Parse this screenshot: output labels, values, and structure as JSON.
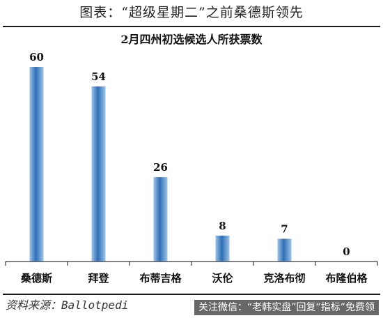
{
  "header": {
    "title": "图表：“超级星期二”之前桑德斯领先"
  },
  "source": {
    "text": "资料来源：Ballotpedi"
  },
  "watermark": {
    "text": "关注微信：“老韩实盘”回复“指标”免费领"
  },
  "colors": {
    "bar_light": "#9cc3ea",
    "bar_dark": "#2f6fb5",
    "axis": "#3a3a3a"
  },
  "chart_data": {
    "type": "bar",
    "title": "2月四州初选候选人所获票数",
    "categories": [
      "桑德斯",
      "拜登",
      "布蒂吉格",
      "沃伦",
      "克洛布彻",
      "布隆伯格"
    ],
    "values": [
      60,
      54,
      26,
      8,
      7,
      0
    ],
    "data_labels": [
      "60",
      "54",
      "26",
      "8",
      "7",
      "0"
    ],
    "xlabel": "",
    "ylabel": "",
    "ylim": [
      0,
      60
    ],
    "grid": false,
    "legend": "none"
  }
}
